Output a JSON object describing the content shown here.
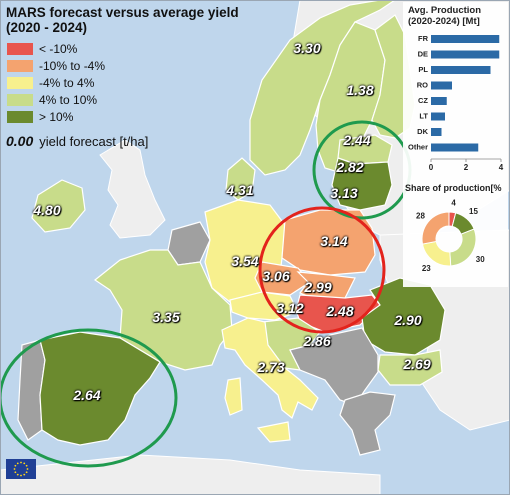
{
  "legend": {
    "title_line1": "MARS forecast versus average yield",
    "title_line2": "(2020 - 2024)",
    "classes": [
      {
        "label": "< -10%",
        "color": "#e8554d"
      },
      {
        "label": "-10% to -4%",
        "color": "#f4a36f"
      },
      {
        "label": "-4% to 4%",
        "color": "#f7f08e"
      },
      {
        "label": "4% to 10%",
        "color": "#c8dc8a"
      },
      {
        "label": "> 10%",
        "color": "#6b8a2e"
      }
    ],
    "yield_sample": "0.00",
    "yield_label": "yield forecast [t/ha]"
  },
  "yields": {
    "norway": "3.30",
    "sweden": "1.38",
    "latvia": "2.44",
    "lithuania": "2.82",
    "lithuania_south": "3.13",
    "denmark": "4.31",
    "ireland": "4.80",
    "poland": "3.14",
    "germany": "3.54",
    "czechia": "3.06",
    "slovakia": "2.99",
    "hungary": "2.48",
    "austria": "3.12",
    "romania": "2.90",
    "croatia": "2.86",
    "bulgaria": "2.69",
    "france": "3.35",
    "italy": "2.73",
    "spain": "2.64"
  },
  "production_panel": {
    "title_line1": "Avg. Production",
    "title_line2": "(2020-2024) [Mt]",
    "bar_color": "#2b6aa6",
    "countries": [
      "FR",
      "DE",
      "PL",
      "RO",
      "CZ",
      "LT",
      "DK",
      "Other"
    ],
    "values": [
      3.9,
      3.9,
      3.4,
      1.2,
      0.9,
      0.8,
      0.6,
      2.7
    ],
    "x_ticks": [
      "0",
      "2",
      "4"
    ],
    "x_max": 4
  },
  "share_panel": {
    "title": "Share of production[%",
    "slices": [
      {
        "value": 4,
        "label": "4",
        "color": "#e8554d"
      },
      {
        "value": 15,
        "label": "15",
        "color": "#6b8a2e"
      },
      {
        "value": 30,
        "label": "30",
        "color": "#c8dc8a"
      },
      {
        "value": 23,
        "label": "23",
        "color": "#f7f08e"
      },
      {
        "value": 28,
        "label": "28",
        "color": "#f4a36f"
      }
    ]
  },
  "colors": {
    "sea": "#bfd6ec",
    "non_eu": "#eeeeee",
    "no_data": "#a0a0a0",
    "circle_green": "#1f9a4e",
    "circle_red": "#e3231c"
  }
}
